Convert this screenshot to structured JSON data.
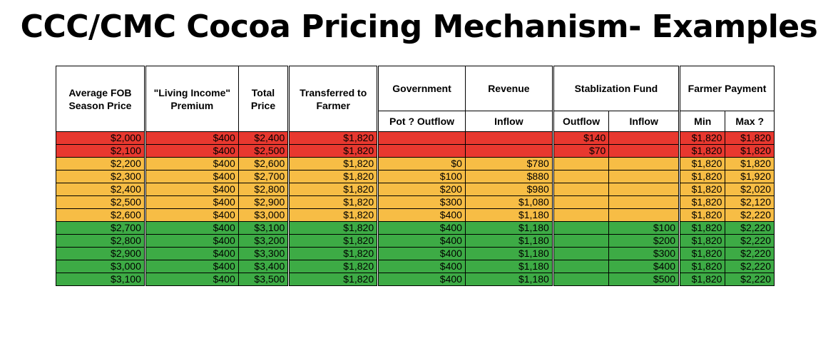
{
  "title": "CCC/CMC Cocoa Pricing Mechanism- Examples",
  "headers": {
    "fob": "Average FOB Season Price",
    "premium": "\"Living Income\" Premium",
    "total": "Total Price",
    "transferred": "Transferred to Farmer",
    "government": "Government",
    "revenue": "Revenue",
    "stabilization": "Stablization Fund",
    "farmer_payment": "Farmer Payment",
    "pot_outflow": "Pot ? Outflow",
    "inflow": "Inflow",
    "outflow": "Outflow",
    "stab_inflow": "Inflow",
    "min": "Min",
    "max": "Max ?"
  },
  "colors": {
    "red": "#e8382f",
    "yellow": "#f7bd45",
    "green": "#3dab45"
  },
  "rows": [
    {
      "band": "red",
      "fob": "$2,000",
      "premium": "$400",
      "total": "$2,400",
      "transferred": "$1,820",
      "gov": "",
      "rev": "",
      "stab_out": "$140",
      "stab_in": "",
      "min": "$1,820",
      "max": "$1,820"
    },
    {
      "band": "red",
      "fob": "$2,100",
      "premium": "$400",
      "total": "$2,500",
      "transferred": "$1,820",
      "gov": "",
      "rev": "",
      "stab_out": "$70",
      "stab_in": "",
      "min": "$1,820",
      "max": "$1,820"
    },
    {
      "band": "yellow",
      "fob": "$2,200",
      "premium": "$400",
      "total": "$2,600",
      "transferred": "$1,820",
      "gov": "$0",
      "rev": "$780",
      "stab_out": "",
      "stab_in": "",
      "min": "$1,820",
      "max": "$1,820"
    },
    {
      "band": "yellow",
      "fob": "$2,300",
      "premium": "$400",
      "total": "$2,700",
      "transferred": "$1,820",
      "gov": "$100",
      "rev": "$880",
      "stab_out": "",
      "stab_in": "",
      "min": "$1,820",
      "max": "$1,920"
    },
    {
      "band": "yellow",
      "fob": "$2,400",
      "premium": "$400",
      "total": "$2,800",
      "transferred": "$1,820",
      "gov": "$200",
      "rev": "$980",
      "stab_out": "",
      "stab_in": "",
      "min": "$1,820",
      "max": "$2,020"
    },
    {
      "band": "yellow",
      "fob": "$2,500",
      "premium": "$400",
      "total": "$2,900",
      "transferred": "$1,820",
      "gov": "$300",
      "rev": "$1,080",
      "stab_out": "",
      "stab_in": "",
      "min": "$1,820",
      "max": "$2,120"
    },
    {
      "band": "yellow",
      "fob": "$2,600",
      "premium": "$400",
      "total": "$3,000",
      "transferred": "$1,820",
      "gov": "$400",
      "rev": "$1,180",
      "stab_out": "",
      "stab_in": "",
      "min": "$1,820",
      "max": "$2,220"
    },
    {
      "band": "green",
      "fob": "$2,700",
      "premium": "$400",
      "total": "$3,100",
      "transferred": "$1,820",
      "gov": "$400",
      "rev": "$1,180",
      "stab_out": "",
      "stab_in": "$100",
      "min": "$1,820",
      "max": "$2,220"
    },
    {
      "band": "green",
      "fob": "$2,800",
      "premium": "$400",
      "total": "$3,200",
      "transferred": "$1,820",
      "gov": "$400",
      "rev": "$1,180",
      "stab_out": "",
      "stab_in": "$200",
      "min": "$1,820",
      "max": "$2,220"
    },
    {
      "band": "green",
      "fob": "$2,900",
      "premium": "$400",
      "total": "$3,300",
      "transferred": "$1,820",
      "gov": "$400",
      "rev": "$1,180",
      "stab_out": "",
      "stab_in": "$300",
      "min": "$1,820",
      "max": "$2,220"
    },
    {
      "band": "green",
      "fob": "$3,000",
      "premium": "$400",
      "total": "$3,400",
      "transferred": "$1,820",
      "gov": "$400",
      "rev": "$1,180",
      "stab_out": "",
      "stab_in": "$400",
      "min": "$1,820",
      "max": "$2,220"
    },
    {
      "band": "green",
      "fob": "$3,100",
      "premium": "$400",
      "total": "$3,500",
      "transferred": "$1,820",
      "gov": "$400",
      "rev": "$1,180",
      "stab_out": "",
      "stab_in": "$500",
      "min": "$1,820",
      "max": "$2,220"
    }
  ]
}
